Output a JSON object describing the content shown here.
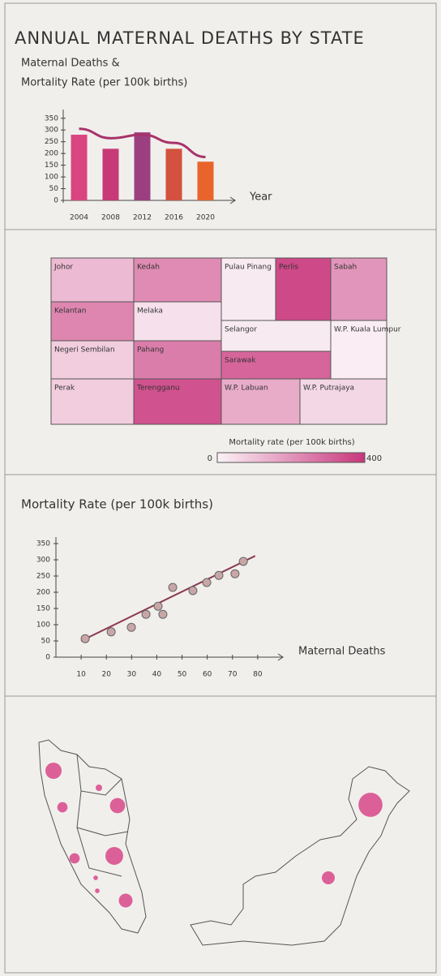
{
  "title": "ANNUAL MATERNAL DEATHS BY STATE",
  "chart_data": [
    {
      "type": "bar-line",
      "ylabel": [
        "Maternal Deaths &",
        "Mortality Rate (per 100k births)"
      ],
      "xlabel": "Year",
      "categories": [
        "2004",
        "2008",
        "2012",
        "2016",
        "2020"
      ],
      "series": [
        {
          "type": "bar",
          "colors": [
            "#d9467f",
            "#c73a77",
            "#9b3f80",
            "#d4503f",
            "#e8642c"
          ],
          "values": [
            280,
            220,
            290,
            220,
            165
          ]
        },
        {
          "type": "line",
          "color": "#a8336a",
          "values": [
            305,
            265,
            280,
            245,
            185
          ]
        }
      ],
      "ylim": [
        0,
        370
      ],
      "yticks": [
        0,
        50,
        100,
        150,
        200,
        250,
        300,
        350
      ]
    },
    {
      "type": "treemap",
      "labels": [
        "Johor",
        "Kedah",
        "Kelantan",
        "Melaka",
        "Negeri Sembilan",
        "Pahang",
        "Perak",
        "Terengganu",
        "Pulau Pinang",
        "Perlis",
        "Sabah",
        "Selangor",
        "W.P. Kuala Lumpur",
        "Sarawak",
        "W.P. Labuan",
        "W.P. Putrajaya"
      ],
      "values": [
        120,
        220,
        230,
        40,
        80,
        250,
        80,
        340,
        20,
        360,
        200,
        20,
        10,
        300,
        150,
        60
      ],
      "colorbar_label": "Mortality rate (per 100k births)",
      "colorlim": [
        0,
        400
      ],
      "colors": [
        "#fbf3f7",
        "#c8367c"
      ]
    },
    {
      "type": "scatter",
      "ylabel": "Mortality Rate (per 100k births)",
      "xlabel": "Maternal Deaths",
      "x": [
        11.6,
        21.9,
        29.9,
        35.7,
        40.5,
        42.4,
        46.3,
        54.3,
        59.8,
        64.6,
        71,
        74.3
      ],
      "values": [
        57,
        78,
        92,
        132,
        157,
        132,
        215,
        205,
        230,
        252,
        257,
        295
      ],
      "color": "#c9a6a6",
      "trendline": {
        "x": [
          10,
          79
        ],
        "values": [
          50,
          312
        ],
        "color": "#8a3a52"
      },
      "xlim": [
        0,
        90
      ],
      "xticks": [
        10,
        20,
        30,
        40,
        50,
        60,
        70,
        80
      ],
      "ylim": [
        0,
        370
      ],
      "yticks": [
        0,
        50,
        100,
        150,
        200,
        250,
        300,
        350
      ]
    },
    {
      "type": "bubble-map",
      "color": "#d8478a",
      "values": [
        25,
        4,
        10,
        22,
        10,
        30,
        2,
        2,
        18,
        55,
        16
      ]
    }
  ]
}
